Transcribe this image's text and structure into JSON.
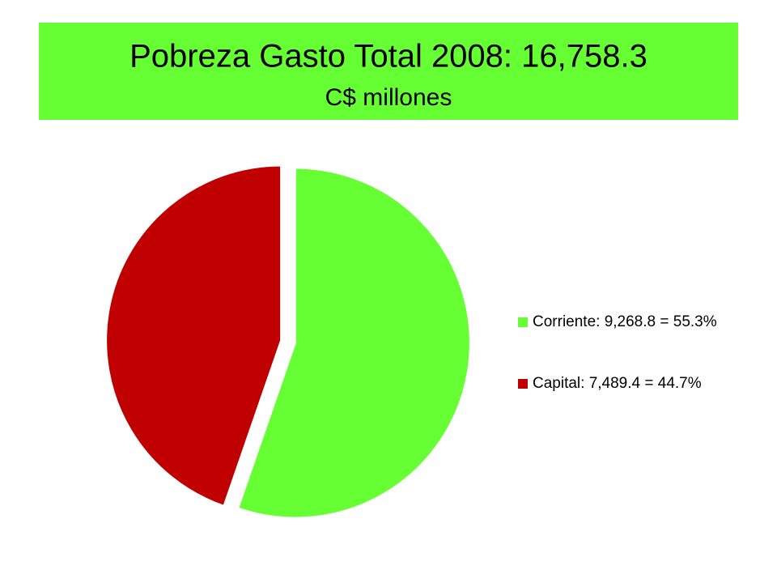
{
  "chart_data": {
    "type": "pie",
    "title": "Pobreza Gasto Total 2008:  16,758.3",
    "subtitle": "C$ millones",
    "categories": [
      "Corriente: 9,268.8 = 55.3%",
      "Capital: 7,489.4 = 44.7%"
    ],
    "values": [
      55.3,
      44.7
    ],
    "colors": [
      "#66ff33",
      "#c00000"
    ],
    "title_background": "#66ff33"
  }
}
